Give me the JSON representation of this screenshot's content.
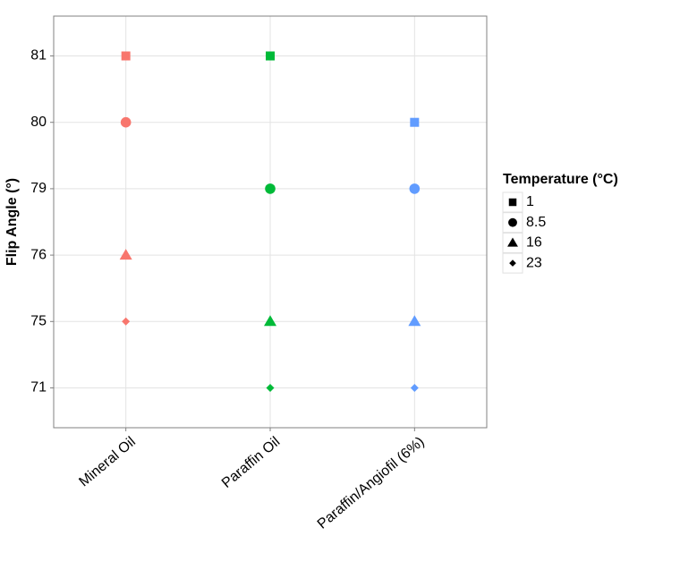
{
  "chart_data": {
    "type": "scatter",
    "y_label": "Flip Angle (°)",
    "categories": [
      "Mineral Oil",
      "Paraffin Oil",
      "Paraffin/Angiofil (6%)"
    ],
    "category_colors": [
      "#F8766D",
      "#00BA38",
      "#619CFF"
    ],
    "y_levels": [
      71,
      75,
      76,
      79,
      80,
      81
    ],
    "legend_title": "Temperature (°C)",
    "series": [
      {
        "name": "1",
        "shape": "square",
        "values": [
          81,
          81,
          80
        ]
      },
      {
        "name": "8.5",
        "shape": "circle",
        "values": [
          80,
          79,
          79
        ]
      },
      {
        "name": "16",
        "shape": "triangle",
        "values": [
          76,
          75,
          75
        ]
      },
      {
        "name": "23",
        "shape": "diamond",
        "values": [
          75,
          71,
          71
        ]
      }
    ],
    "grid": true
  }
}
